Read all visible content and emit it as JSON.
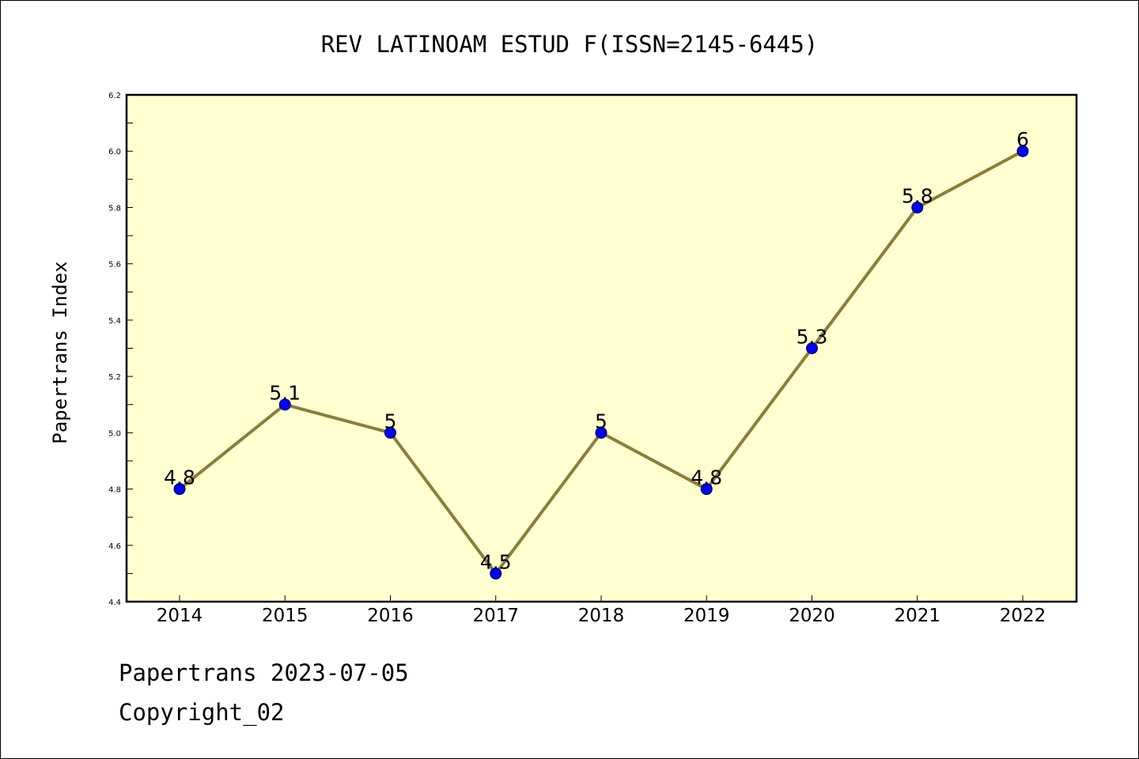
{
  "chart_data": {
    "type": "line",
    "title": "REV LATINOAM ESTUD F(ISSN=2145-6445)",
    "ylabel": "Papertrans Index",
    "xlabel": "",
    "categories": [
      "2014",
      "2015",
      "2016",
      "2017",
      "2018",
      "2019",
      "2020",
      "2021",
      "2022"
    ],
    "values": [
      4.8,
      5.1,
      5.0,
      4.5,
      5.0,
      4.8,
      5.3,
      5.8,
      6.0
    ],
    "data_labels": [
      "4.8",
      "5.1",
      "5",
      "4.5",
      "5",
      "4.8",
      "5.3",
      "5.8",
      "6"
    ],
    "ylim": [
      4.4,
      6.2
    ],
    "yticks": [
      "4.4",
      "4.6",
      "4.8",
      "5.0",
      "5.2",
      "5.4",
      "5.6",
      "5.8",
      "6.0",
      "6.2"
    ],
    "grid": false,
    "colors": {
      "plot_background": "#ffffd0",
      "line": "#8b7d3a",
      "marker": "#0000ff"
    }
  },
  "footer": {
    "line1": "Papertrans 2023-07-05",
    "line2": "Copyright_02"
  }
}
